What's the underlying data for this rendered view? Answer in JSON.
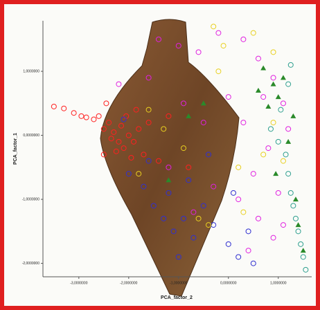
{
  "chart_data": {
    "type": "scatter",
    "x_label": "PCA_factor_2",
    "y_label": "PCA_factor_1",
    "xlim": [
      -3.72,
      1.67
    ],
    "ylim": [
      -2.21,
      1.79
    ],
    "xticks": [
      {
        "value": -3,
        "label": "-3,0000000"
      },
      {
        "value": -2,
        "label": "-2,0000000"
      },
      {
        "value": -1,
        "label": "-1,0000000"
      },
      {
        "value": 0,
        "label": "0,0000000"
      },
      {
        "value": 1,
        "label": "1,0000000"
      }
    ],
    "yticks": [
      {
        "value": 1,
        "label": "1,0000000"
      },
      {
        "value": 0,
        "label": "0,0000000"
      },
      {
        "value": -1,
        "label": "-1,0000000"
      },
      {
        "value": -2,
        "label": "-2,0000000"
      }
    ],
    "series": [
      {
        "color": "#ff2020",
        "marker": "circle",
        "x": [
          -3.5,
          -3.3,
          -3.1,
          -2.95,
          -2.85,
          -2.7,
          -2.6,
          -2.5,
          -2.4,
          -2.3,
          -2.2,
          -2.1,
          -2.0,
          -1.9,
          -1.8,
          -1.7,
          -2.15,
          -2.35,
          -1.95,
          -2.05,
          -2.25,
          -1.6,
          -2.5,
          -1.85,
          -2.45,
          -1.4,
          -1.2,
          -0.8
        ],
        "y": [
          0.45,
          0.42,
          0.35,
          0.3,
          0.28,
          0.25,
          0.3,
          0.1,
          0.2,
          0.05,
          -0.1,
          -0.2,
          0.0,
          -0.1,
          0.1,
          -0.3,
          0.15,
          -0.05,
          -0.35,
          0.3,
          -0.25,
          0.2,
          -0.3,
          0.4,
          0.5,
          -0.4,
          0.3,
          -0.5
        ]
      },
      {
        "color": "#e020e0",
        "marker": "circle",
        "x": [
          -1.4,
          -1.0,
          -0.6,
          -0.2,
          0.3,
          0.6,
          0.9,
          1.1,
          1.2,
          0.8,
          0.5,
          0.2,
          0.6,
          0.9,
          0.4,
          -0.3,
          -0.5,
          -0.9,
          -1.2,
          -1.6,
          -2.2,
          0.0,
          0.3,
          1.0,
          1.1,
          -0.7,
          0.7
        ],
        "y": [
          1.5,
          1.4,
          1.3,
          1.6,
          1.5,
          1.2,
          0.9,
          0.5,
          0.1,
          -0.2,
          -0.6,
          -1.0,
          -1.3,
          -1.6,
          -1.8,
          -0.8,
          0.2,
          0.5,
          -0.5,
          0.9,
          0.8,
          0.6,
          0.2,
          -0.9,
          -1.4,
          -1.2,
          0.6
        ]
      },
      {
        "color": "#3030d0",
        "marker": "circle",
        "x": [
          -2.0,
          -1.7,
          -1.5,
          -1.3,
          -1.1,
          -0.9,
          -0.7,
          -0.5,
          -0.3,
          0.0,
          0.2,
          0.5,
          -1.2,
          -0.8,
          -1.6,
          -0.4,
          0.4,
          -1.0,
          0.1,
          -2.1
        ],
        "y": [
          -0.6,
          -0.8,
          -1.1,
          -1.3,
          -1.5,
          -1.3,
          -1.6,
          -1.1,
          -1.4,
          -1.7,
          -1.9,
          -2.0,
          -0.9,
          -0.7,
          -0.4,
          -0.3,
          -1.5,
          -1.9,
          -0.9,
          0.25
        ]
      },
      {
        "color": "#e8d020",
        "marker": "circle",
        "x": [
          -0.3,
          -0.1,
          0.5,
          0.9,
          -0.2,
          -1.6,
          -1.3,
          -0.9,
          -0.6,
          -0.4,
          0.2,
          0.7,
          0.9,
          -1.8,
          0.3,
          1.1
        ],
        "y": [
          1.7,
          1.4,
          1.6,
          1.3,
          1.0,
          0.4,
          0.1,
          -0.2,
          -1.3,
          -1.4,
          -0.5,
          -0.3,
          0.2,
          -0.6,
          -1.2,
          -0.4
        ]
      },
      {
        "color": "#30a090",
        "marker": "circle",
        "x": [
          1.2,
          1.25,
          1.3,
          1.35,
          1.4,
          1.45,
          1.5,
          1.55,
          1.15,
          1.0,
          0.85,
          1.05,
          1.2,
          1.25
        ],
        "y": [
          -0.6,
          -0.9,
          -1.1,
          -1.3,
          -1.5,
          -1.7,
          -1.9,
          -2.1,
          -0.3,
          -0.1,
          0.1,
          0.4,
          0.8,
          1.1
        ]
      },
      {
        "color": "#2a8a2a",
        "marker": "triangle",
        "x": [
          0.7,
          0.9,
          1.0,
          1.1,
          0.8,
          0.6,
          -0.8,
          -0.5,
          1.2,
          0.95,
          1.35,
          1.4,
          1.5,
          -1.2,
          1.3
        ],
        "y": [
          1.05,
          0.8,
          0.6,
          0.9,
          0.45,
          0.7,
          0.3,
          0.5,
          -0.1,
          -0.6,
          -1.0,
          -1.4,
          -1.8,
          -0.7,
          0.3
        ]
      }
    ]
  }
}
